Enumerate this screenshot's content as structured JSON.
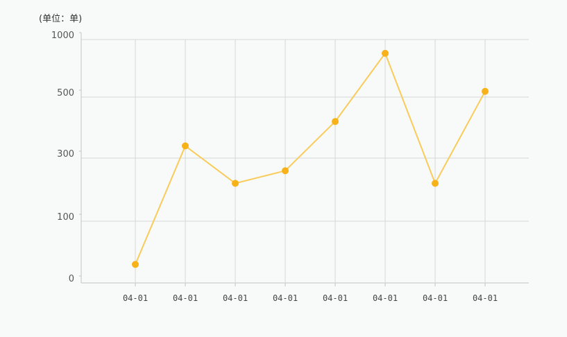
{
  "chart_data": {
    "type": "line",
    "unit_label": "(单位：单)",
    "categories": [
      "04-01",
      "04-01",
      "04-01",
      "04-01",
      "04-01",
      "04-01",
      "04-01",
      "04-01"
    ],
    "y_ticks": [
      0,
      100,
      300,
      500,
      1000
    ],
    "series": [
      {
        "values": [
          30,
          340,
          220,
          260,
          420,
          880,
          220,
          550
        ]
      }
    ],
    "grid": true,
    "colors": {
      "line": "#f9cb5a",
      "marker": "#f7b21a",
      "grid": "#d4d8d6",
      "axis": "#bfc4c2"
    }
  }
}
